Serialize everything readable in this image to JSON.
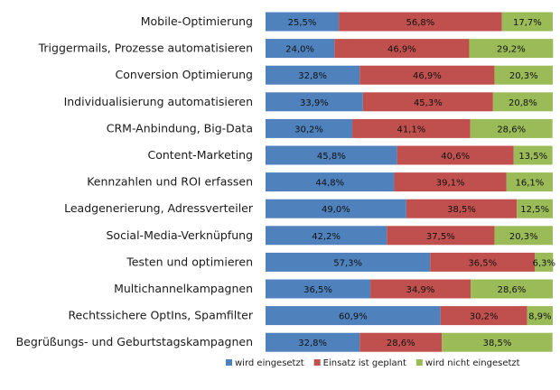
{
  "chart_data": {
    "type": "bar",
    "orientation": "horizontal",
    "stacked": true,
    "normalized": true,
    "title": "",
    "xlabel": "",
    "ylabel": "",
    "xlim": [
      0,
      100
    ],
    "grid": false,
    "legend_position": "bottom",
    "categories": [
      "Mobile-Optimierung",
      "Triggermails, Prozesse automatisieren",
      "Conversion Optimierung",
      "Individualisierung automatisieren",
      "CRM-Anbindung, Big-Data",
      "Content-Marketing",
      "Kennzahlen und ROI erfassen",
      "Leadgenerierung, Adressverteiler",
      "Social-Media-Verknüpfung",
      "Testen und optimieren",
      "Multichannelkampagnen",
      "Rechtssichere OptIns, Spamfilter",
      "Begrüßungs- und Geburtstagskampagnen"
    ],
    "series": [
      {
        "name": "wird eingesetzt",
        "color": "#4f81bd",
        "values": [
          25.5,
          24.0,
          32.8,
          33.9,
          30.2,
          45.8,
          44.8,
          49.0,
          42.2,
          57.3,
          36.5,
          60.9,
          32.8
        ],
        "labels": [
          "25,5%",
          "24,0%",
          "32,8%",
          "33,9%",
          "30,2%",
          "45,8%",
          "44,8%",
          "49,0%",
          "42,2%",
          "57,3%",
          "36,5%",
          "60,9%",
          "32,8%"
        ]
      },
      {
        "name": "Einsatz ist geplant",
        "color": "#c0504d",
        "values": [
          56.8,
          46.9,
          46.9,
          45.3,
          41.1,
          40.6,
          39.1,
          38.5,
          37.5,
          36.5,
          34.9,
          30.2,
          28.6
        ],
        "labels": [
          "56,8%",
          "46,9%",
          "46,9%",
          "45,3%",
          "41,1%",
          "40,6%",
          "39,1%",
          "38,5%",
          "37,5%",
          "36,5%",
          "34,9%",
          "30,2%",
          "28,6%"
        ]
      },
      {
        "name": "wird nicht eingesetzt",
        "color": "#9bbb59",
        "values": [
          17.7,
          29.2,
          20.3,
          20.8,
          28.6,
          13.5,
          16.1,
          12.5,
          20.3,
          6.3,
          28.6,
          8.9,
          38.5
        ],
        "labels": [
          "17,7%",
          "29,2%",
          "20,3%",
          "20,8%",
          "28,6%",
          "13,5%",
          "16,1%",
          "12,5%",
          "20,3%",
          "6,3%",
          "28,6%",
          "8,9%",
          "38,5%"
        ]
      }
    ]
  }
}
